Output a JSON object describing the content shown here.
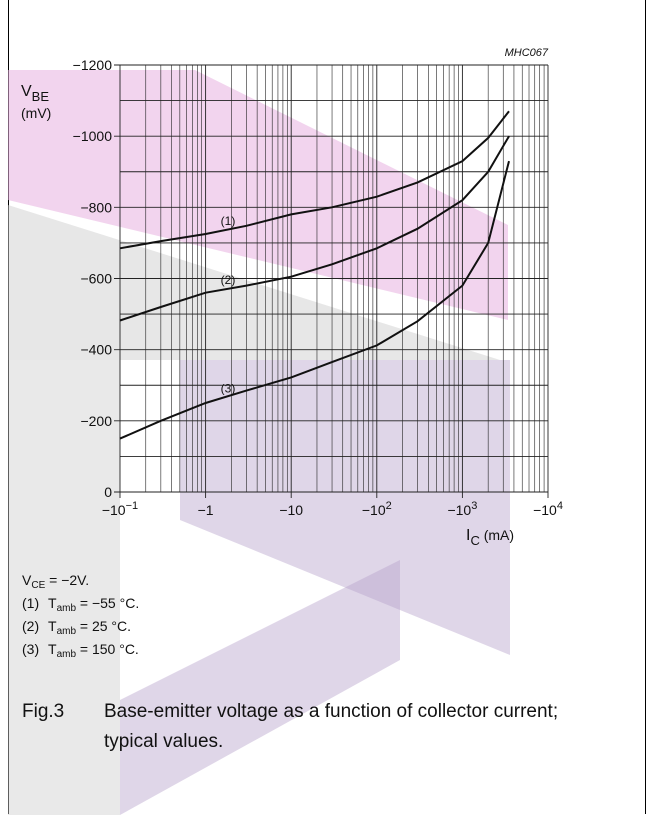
{
  "chart_data": {
    "type": "line",
    "code": "MHC067",
    "ylabel": {
      "symbol": "V",
      "sub": "BE",
      "unit": "(mV)"
    },
    "xlabel": {
      "symbol": "I",
      "sub": "C",
      "unit": "(mA)"
    },
    "x_scale": "log",
    "xlim": [
      -0.1,
      -10000
    ],
    "ylim": [
      0,
      -1200
    ],
    "x_ticks": [
      {
        "base": "−10",
        "exp": "−1",
        "value": -0.1
      },
      {
        "base": "−1",
        "exp": "",
        "value": -1
      },
      {
        "base": "−10",
        "exp": "",
        "value": -10
      },
      {
        "base": "−10",
        "exp": "2",
        "value": -100
      },
      {
        "base": "−10",
        "exp": "3",
        "value": -1000
      },
      {
        "base": "−10",
        "exp": "4",
        "value": -10000
      }
    ],
    "y_ticks": [
      {
        "label": "0",
        "value": 0
      },
      {
        "label": "−200",
        "value": -200
      },
      {
        "label": "−400",
        "value": -400
      },
      {
        "label": "−600",
        "value": -600
      },
      {
        "label": "−800",
        "value": -800
      },
      {
        "label": "−1000",
        "value": -1000
      },
      {
        "label": "−1200",
        "value": -1200
      }
    ],
    "grid": true,
    "series": [
      {
        "name": "(1)",
        "label_at": -1.5,
        "x": [
          -0.1,
          -0.3,
          -1,
          -3,
          -10,
          -30,
          -100,
          -300,
          -1000,
          -2000,
          -3500
        ],
        "y": [
          -685,
          -705,
          -725,
          -748,
          -780,
          -800,
          -830,
          -870,
          -930,
          -995,
          -1070
        ]
      },
      {
        "name": "(2)",
        "label_at": -1.5,
        "x": [
          -0.1,
          -0.3,
          -1,
          -3,
          -10,
          -30,
          -100,
          -300,
          -1000,
          -2000,
          -3500
        ],
        "y": [
          -482,
          -520,
          -560,
          -580,
          -605,
          -640,
          -685,
          -740,
          -820,
          -900,
          -1000
        ]
      },
      {
        "name": "(3)",
        "label_at": -1.5,
        "x": [
          -0.1,
          -0.3,
          -1,
          -3,
          -10,
          -30,
          -100,
          -300,
          -1000,
          -2000,
          -3500
        ],
        "y": [
          -150,
          -200,
          -250,
          -285,
          -322,
          -365,
          -412,
          -480,
          -580,
          -700,
          -930
        ]
      }
    ]
  },
  "notes": {
    "vce": {
      "pre": "V",
      "sub": "CE",
      "post": " = −2V."
    },
    "items": [
      {
        "num": "(1)",
        "pre": "T",
        "sub": "amb",
        "post": " = −55 °C."
      },
      {
        "num": "(2)",
        "pre": "T",
        "sub": "amb",
        "post": " = 25 °C."
      },
      {
        "num": "(3)",
        "pre": "T",
        "sub": "amb",
        "post": " = 150 °C."
      }
    ]
  },
  "caption": {
    "label": "Fig.3",
    "text": "Base-emitter voltage as a function of collector current; typical values."
  },
  "colors": {
    "watermark_pink": "#e8b0e0",
    "watermark_purple": "#b8a4cc",
    "watermark_grey": "#cfcfcf",
    "line": "#111111",
    "grid": "#222222"
  }
}
